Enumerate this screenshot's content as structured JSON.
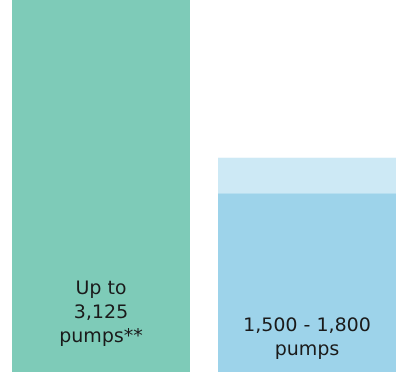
{
  "chart_data": {
    "type": "bar",
    "categories": [
      "Up to 3,125 pumps**",
      "1,500 - 1,800 pumps"
    ],
    "series": [
      {
        "values": [
          3125,
          1500
        ],
        "colors": [
          "#7ecbb8",
          "#9dd3ea"
        ]
      },
      {
        "values": [
          0,
          300
        ],
        "colors": [
          "#7ecbb8",
          "#cde9f5"
        ]
      }
    ],
    "labels": [
      [
        "Up to",
        "3,125",
        "pumps**"
      ],
      [
        "1,500 - 1,800",
        "pumps"
      ]
    ],
    "stacked": true,
    "ylim": [
      0,
      3125
    ],
    "grid": false,
    "legend": "none"
  }
}
